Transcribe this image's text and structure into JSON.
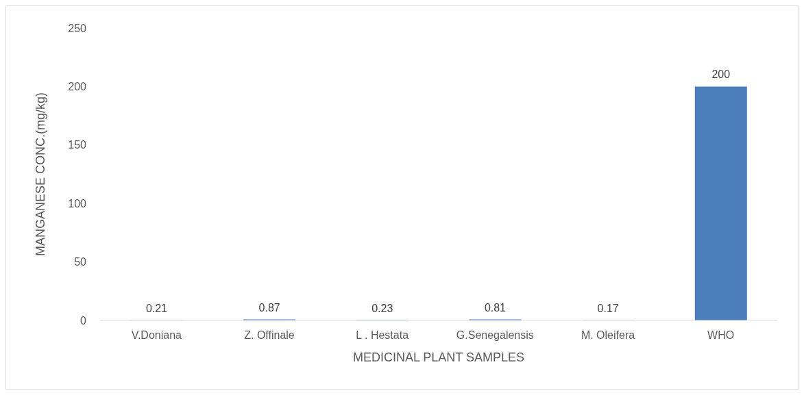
{
  "chart_data": {
    "type": "bar",
    "xlabel": "MEDICINAL PLANT SAMPLES",
    "ylabel": "MANGANESE CONC.(mg/kg)",
    "categories": [
      "V.Doniana",
      "Z. Offinale",
      "L . Hestata",
      "G.Senegalensis",
      "M. Oleifera",
      "WHO"
    ],
    "values": [
      0.21,
      0.87,
      0.23,
      0.81,
      0.17,
      200
    ],
    "color": "#4a7ebb",
    "ylim": [
      0,
      250
    ],
    "yticks": [
      0,
      50,
      100,
      150,
      200,
      250
    ],
    "grid": false,
    "data_labels": true
  }
}
